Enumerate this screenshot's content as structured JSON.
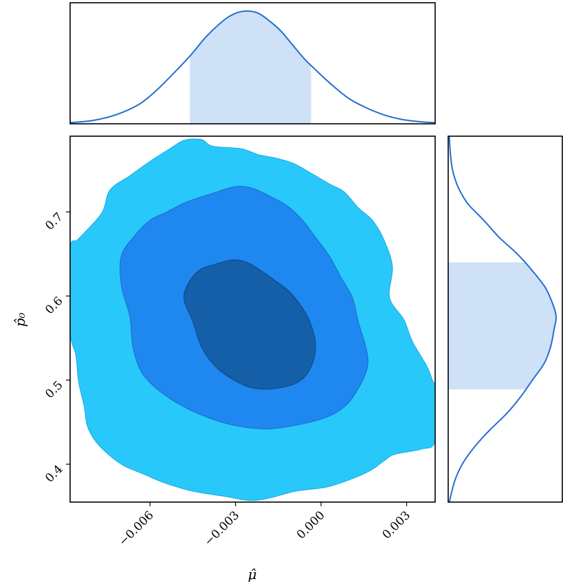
{
  "chart_data": {
    "type": "contour",
    "title": "",
    "xlabel": "μ̂",
    "ylabel": "p̂₀",
    "xlim": [
      -0.0088,
      0.004
    ],
    "ylim": [
      0.355,
      0.79
    ],
    "xticks": [
      {
        "value": -0.006,
        "label": "−0.006"
      },
      {
        "value": -0.003,
        "label": "−0.003"
      },
      {
        "value": 0.0,
        "label": "0.000"
      },
      {
        "value": 0.003,
        "label": "0.003"
      }
    ],
    "yticks": [
      {
        "value": 0.4,
        "label": "0.4"
      },
      {
        "value": 0.5,
        "label": "0.5"
      },
      {
        "value": 0.6,
        "label": "0.6"
      },
      {
        "value": 0.7,
        "label": "0.7"
      }
    ],
    "joint": {
      "center": [
        -0.0025,
        0.565
      ],
      "levels": [
        {
          "name": "outer",
          "color": "#29c8fb",
          "edge": "#1fb0e6",
          "polygon": [
            [
              -0.0088,
              0.655
            ],
            [
              -0.0085,
              0.668
            ],
            [
              -0.0077,
              0.698
            ],
            [
              -0.0074,
              0.726
            ],
            [
              -0.0067,
              0.743
            ],
            [
              -0.006,
              0.76
            ],
            [
              -0.0053,
              0.775
            ],
            [
              -0.0048,
              0.785
            ],
            [
              -0.0042,
              0.786
            ],
            [
              -0.0038,
              0.778
            ],
            [
              -0.0028,
              0.775
            ],
            [
              -0.0022,
              0.768
            ],
            [
              -0.0016,
              0.764
            ],
            [
              -0.001,
              0.758
            ],
            [
              -0.0004,
              0.747
            ],
            [
              0.0003,
              0.733
            ],
            [
              0.0008,
              0.724
            ],
            [
              0.0013,
              0.705
            ],
            [
              0.0018,
              0.69
            ],
            [
              0.0022,
              0.667
            ],
            [
              0.0025,
              0.635
            ],
            [
              0.0024,
              0.598
            ],
            [
              0.0029,
              0.572
            ],
            [
              0.0032,
              0.546
            ],
            [
              0.0037,
              0.517
            ],
            [
              0.0039,
              0.5
            ],
            [
              0.004,
              0.488
            ],
            [
              0.004,
              0.428
            ],
            [
              0.0035,
              0.418
            ],
            [
              0.0026,
              0.412
            ],
            [
              0.0022,
              0.404
            ],
            [
              0.0018,
              0.394
            ],
            [
              0.0011,
              0.383
            ],
            [
              0.0002,
              0.373
            ],
            [
              -0.0009,
              0.368
            ],
            [
              -0.0018,
              0.36
            ],
            [
              -0.0025,
              0.357
            ],
            [
              -0.0034,
              0.362
            ],
            [
              -0.0045,
              0.368
            ],
            [
              -0.0055,
              0.378
            ],
            [
              -0.0062,
              0.388
            ],
            [
              -0.0069,
              0.398
            ],
            [
              -0.0074,
              0.41
            ],
            [
              -0.0079,
              0.427
            ],
            [
              -0.0082,
              0.446
            ],
            [
              -0.0083,
              0.468
            ],
            [
              -0.0085,
              0.498
            ],
            [
              -0.0086,
              0.53
            ],
            [
              -0.0088,
              0.56
            ]
          ]
        },
        {
          "name": "middle",
          "color": "#1f88f0",
          "edge": "#1a6fd0",
          "polygon": [
            [
              -0.007,
              0.648
            ],
            [
              -0.0065,
              0.673
            ],
            [
              -0.006,
              0.69
            ],
            [
              -0.0054,
              0.7
            ],
            [
              -0.0047,
              0.712
            ],
            [
              -0.0038,
              0.722
            ],
            [
              -0.003,
              0.73
            ],
            [
              -0.0024,
              0.728
            ],
            [
              -0.0017,
              0.717
            ],
            [
              -0.0011,
              0.705
            ],
            [
              -0.0006,
              0.688
            ],
            [
              -0.0002,
              0.67
            ],
            [
              0.0003,
              0.647
            ],
            [
              0.0007,
              0.622
            ],
            [
              0.0011,
              0.598
            ],
            [
              0.0013,
              0.57
            ],
            [
              0.0016,
              0.535
            ],
            [
              0.0016,
              0.512
            ],
            [
              0.0012,
              0.484
            ],
            [
              0.0008,
              0.468
            ],
            [
              0.0002,
              0.456
            ],
            [
              -0.0008,
              0.447
            ],
            [
              -0.0019,
              0.442
            ],
            [
              -0.003,
              0.446
            ],
            [
              -0.004,
              0.456
            ],
            [
              -0.0049,
              0.47
            ],
            [
              -0.0057,
              0.488
            ],
            [
              -0.0063,
              0.51
            ],
            [
              -0.0066,
              0.54
            ],
            [
              -0.0067,
              0.575
            ],
            [
              -0.007,
              0.612
            ]
          ]
        },
        {
          "name": "inner",
          "color": "#155ea8",
          "edge": "#0f4c8a",
          "polygon": [
            [
              -0.0047,
              0.612
            ],
            [
              -0.0043,
              0.63
            ],
            [
              -0.0037,
              0.638
            ],
            [
              -0.0031,
              0.643
            ],
            [
              -0.0026,
              0.64
            ],
            [
              -0.0021,
              0.63
            ],
            [
              -0.0016,
              0.618
            ],
            [
              -0.0011,
              0.605
            ],
            [
              -0.0007,
              0.588
            ],
            [
              -0.0004,
              0.57
            ],
            [
              -0.0002,
              0.545
            ],
            [
              -0.0003,
              0.52
            ],
            [
              -0.0007,
              0.5
            ],
            [
              -0.0014,
              0.491
            ],
            [
              -0.0023,
              0.49
            ],
            [
              -0.003,
              0.499
            ],
            [
              -0.0037,
              0.516
            ],
            [
              -0.0042,
              0.54
            ],
            [
              -0.0045,
              0.57
            ],
            [
              -0.0048,
              0.595
            ]
          ]
        }
      ]
    },
    "marginal_x": {
      "x": [
        -0.0088,
        -0.008,
        -0.0072,
        -0.0064,
        -0.0058,
        -0.0052,
        -0.0046,
        -0.004,
        -0.0034,
        -0.003,
        -0.0026,
        -0.0022,
        -0.0018,
        -0.0014,
        -0.001,
        -0.0006,
        -0.0002,
        0.0004,
        0.001,
        0.0016,
        0.0022,
        0.0028,
        0.0034,
        0.004
      ],
      "density": [
        0.01,
        0.03,
        0.08,
        0.17,
        0.29,
        0.44,
        0.6,
        0.78,
        0.92,
        0.98,
        1.0,
        0.98,
        0.91,
        0.82,
        0.7,
        0.58,
        0.48,
        0.34,
        0.22,
        0.14,
        0.08,
        0.04,
        0.02,
        0.01
      ],
      "shade": [
        -0.0046,
        -0.00035
      ],
      "line_color": "#1f6fd1",
      "fill_color": "#cfe1f6"
    },
    "marginal_y": {
      "y": [
        0.355,
        0.38,
        0.4,
        0.42,
        0.44,
        0.46,
        0.48,
        0.5,
        0.52,
        0.54,
        0.56,
        0.575,
        0.59,
        0.61,
        0.63,
        0.65,
        0.67,
        0.69,
        0.71,
        0.73,
        0.75,
        0.77,
        0.79
      ],
      "density": [
        0.01,
        0.06,
        0.13,
        0.24,
        0.38,
        0.54,
        0.67,
        0.78,
        0.89,
        0.95,
        0.98,
        1.0,
        0.97,
        0.9,
        0.78,
        0.64,
        0.47,
        0.33,
        0.18,
        0.09,
        0.04,
        0.02,
        0.01
      ],
      "shade": [
        0.489,
        0.64
      ],
      "line_color": "#1f6fd1",
      "fill_color": "#cfe1f6"
    }
  }
}
